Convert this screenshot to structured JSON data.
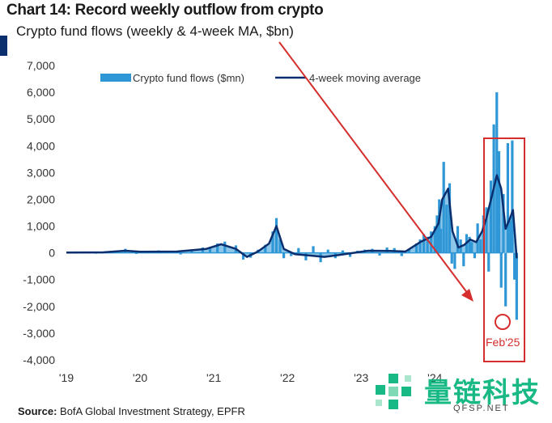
{
  "header": {
    "title": "Chart 14: Record weekly outflow from crypto",
    "subtitle": "Crypto fund flows (weekly & 4-week MA, $bn)"
  },
  "footer": {
    "source_label": "Source:",
    "source_text": "BofA Global Investment Strategy, EPFR"
  },
  "annotation": {
    "label": "Feb'25",
    "color": "#d62d2d"
  },
  "watermark": {
    "text": "量链科技",
    "sub": "QFSP.NET",
    "color": "#19b985"
  },
  "colors": {
    "bars": "#2f97d6",
    "ma_line": "#0a2e6e",
    "accent": "#0a2e6e"
  },
  "chart_data": {
    "type": "bar",
    "title": "Chart 14: Record weekly outflow from crypto",
    "subtitle": "Crypto fund flows (weekly & 4-week MA, $bn)",
    "ylim": [
      -4000,
      7000
    ],
    "yticks": [
      7000,
      6000,
      5000,
      4000,
      3000,
      2000,
      1000,
      0,
      -1000,
      -2000,
      -3000,
      -4000
    ],
    "ytick_labels": [
      "7,000",
      "6,000",
      "5,000",
      "4,000",
      "3,000",
      "2,000",
      "1,000",
      "0",
      "-1,000",
      "-2,000",
      "-3,000",
      "-4,000"
    ],
    "xlim": [
      2019.0,
      2025.15
    ],
    "xticks": [
      2019,
      2020,
      2021,
      2022,
      2023,
      2024
    ],
    "xtick_labels": [
      "'19",
      "'20",
      "'21",
      "'22",
      "'23",
      "'24"
    ],
    "legend_position": "top",
    "grid": false,
    "series": [
      {
        "name": "Crypto fund flows ($mn)",
        "kind": "bar",
        "points": [
          [
            2019.05,
            20
          ],
          [
            2019.2,
            40
          ],
          [
            2019.4,
            -30
          ],
          [
            2019.6,
            60
          ],
          [
            2019.8,
            150
          ],
          [
            2019.95,
            -40
          ],
          [
            2020.1,
            50
          ],
          [
            2020.25,
            90
          ],
          [
            2020.4,
            70
          ],
          [
            2020.55,
            -60
          ],
          [
            2020.7,
            110
          ],
          [
            2020.85,
            200
          ],
          [
            2020.95,
            220
          ],
          [
            2021.05,
            350
          ],
          [
            2021.15,
            420
          ],
          [
            2021.3,
            280
          ],
          [
            2021.4,
            -250
          ],
          [
            2021.5,
            -180
          ],
          [
            2021.6,
            120
          ],
          [
            2021.7,
            300
          ],
          [
            2021.8,
            800
          ],
          [
            2021.85,
            1300
          ],
          [
            2021.9,
            500
          ],
          [
            2021.95,
            -200
          ],
          [
            2022.05,
            -120
          ],
          [
            2022.15,
            180
          ],
          [
            2022.25,
            -280
          ],
          [
            2022.35,
            250
          ],
          [
            2022.45,
            -350
          ],
          [
            2022.55,
            120
          ],
          [
            2022.65,
            -200
          ],
          [
            2022.75,
            90
          ],
          [
            2022.85,
            -150
          ],
          [
            2022.95,
            80
          ],
          [
            2023.05,
            120
          ],
          [
            2023.15,
            150
          ],
          [
            2023.25,
            -100
          ],
          [
            2023.35,
            200
          ],
          [
            2023.45,
            180
          ],
          [
            2023.55,
            -120
          ],
          [
            2023.65,
            150
          ],
          [
            2023.75,
            350
          ],
          [
            2023.8,
            500
          ],
          [
            2023.85,
            700
          ],
          [
            2023.9,
            600
          ],
          [
            2023.95,
            800
          ],
          [
            2024.0,
            1000
          ],
          [
            2024.03,
            1400
          ],
          [
            2024.06,
            2000
          ],
          [
            2024.08,
            900
          ],
          [
            2024.12,
            3400
          ],
          [
            2024.16,
            1800
          ],
          [
            2024.2,
            2600
          ],
          [
            2024.23,
            -400
          ],
          [
            2024.27,
            -600
          ],
          [
            2024.31,
            1000
          ],
          [
            2024.35,
            500
          ],
          [
            2024.39,
            -500
          ],
          [
            2024.43,
            700
          ],
          [
            2024.47,
            600
          ],
          [
            2024.5,
            400
          ],
          [
            2024.54,
            -200
          ],
          [
            2024.58,
            1100
          ],
          [
            2024.62,
            500
          ],
          [
            2024.66,
            1400
          ],
          [
            2024.7,
            1700
          ],
          [
            2024.73,
            -700
          ],
          [
            2024.76,
            2700
          ],
          [
            2024.8,
            4800
          ],
          [
            2024.84,
            6000
          ],
          [
            2024.87,
            3800
          ],
          [
            2024.9,
            -1300
          ],
          [
            2024.93,
            2200
          ],
          [
            2024.96,
            -2000
          ],
          [
            2024.99,
            4100
          ],
          [
            2025.02,
            1200
          ],
          [
            2025.05,
            4200
          ],
          [
            2025.08,
            -1000
          ],
          [
            2025.11,
            -2500
          ]
        ]
      },
      {
        "name": "4-week moving average",
        "kind": "line",
        "points": [
          [
            2019.0,
            10
          ],
          [
            2019.5,
            20
          ],
          [
            2019.8,
            80
          ],
          [
            2020.0,
            40
          ],
          [
            2020.5,
            50
          ],
          [
            2020.9,
            150
          ],
          [
            2021.1,
            320
          ],
          [
            2021.3,
            150
          ],
          [
            2021.45,
            -150
          ],
          [
            2021.6,
            50
          ],
          [
            2021.75,
            350
          ],
          [
            2021.85,
            1000
          ],
          [
            2021.95,
            150
          ],
          [
            2022.1,
            -50
          ],
          [
            2022.3,
            -100
          ],
          [
            2022.5,
            -150
          ],
          [
            2022.7,
            -80
          ],
          [
            2022.9,
            0
          ],
          [
            2023.1,
            80
          ],
          [
            2023.4,
            70
          ],
          [
            2023.6,
            50
          ],
          [
            2023.8,
            400
          ],
          [
            2023.95,
            600
          ],
          [
            2024.05,
            1100
          ],
          [
            2024.1,
            2000
          ],
          [
            2024.18,
            2400
          ],
          [
            2024.24,
            800
          ],
          [
            2024.32,
            200
          ],
          [
            2024.4,
            300
          ],
          [
            2024.48,
            500
          ],
          [
            2024.56,
            400
          ],
          [
            2024.64,
            800
          ],
          [
            2024.7,
            1300
          ],
          [
            2024.78,
            2200
          ],
          [
            2024.84,
            2900
          ],
          [
            2024.9,
            2400
          ],
          [
            2024.96,
            900
          ],
          [
            2025.02,
            1300
          ],
          [
            2025.06,
            1600
          ],
          [
            2025.11,
            -200
          ]
        ]
      }
    ]
  }
}
